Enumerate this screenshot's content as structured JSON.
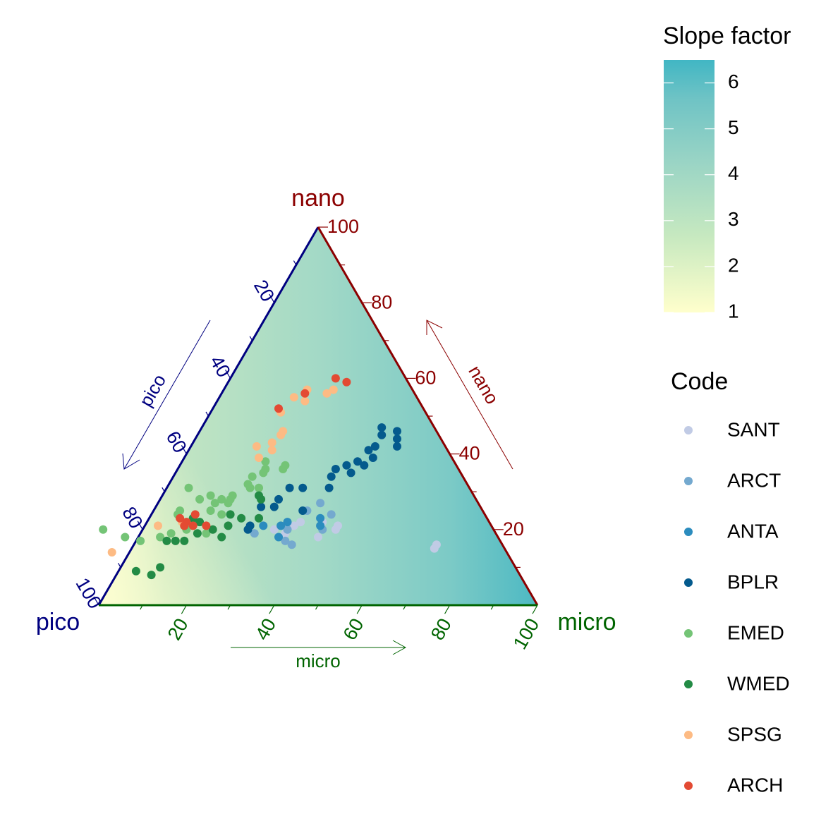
{
  "chart_data": {
    "type": "scatter",
    "subtype": "ternary",
    "axes": {
      "pico": {
        "label": "pico",
        "arrow_label": "pico",
        "color": "#000080",
        "ticks": [
          "20",
          "40",
          "60",
          "80",
          "100"
        ]
      },
      "nano": {
        "label": "nano",
        "arrow_label": "nano",
        "color": "#8B0000",
        "ticks": [
          "20",
          "40",
          "60",
          "80",
          "100"
        ]
      },
      "micro": {
        "label": "micro",
        "arrow_label": "micro",
        "color": "#006400",
        "ticks": [
          "20",
          "40",
          "60",
          "80",
          "100"
        ]
      }
    },
    "fill_legend": {
      "title": "Slope factor",
      "labels": [
        "1",
        "2",
        "3",
        "4",
        "5",
        "6"
      ],
      "min": 1,
      "max": 6.5,
      "colors": [
        "#ffffcc",
        "#c2e6c5",
        "#99d4c5",
        "#6ec3c5",
        "#41b6c4"
      ]
    },
    "legend": {
      "title": "Code",
      "position": "right",
      "entries": [
        {
          "name": "SANT",
          "color": "#c1cbe5"
        },
        {
          "name": "ARCT",
          "color": "#74a9cf"
        },
        {
          "name": "ANTA",
          "color": "#2b8cbe"
        },
        {
          "name": "BPLR",
          "color": "#045a8d"
        },
        {
          "name": "EMED",
          "color": "#74c476"
        },
        {
          "name": "WMED",
          "color": "#238b45"
        },
        {
          "name": "SPSG",
          "color": "#fdbb84"
        },
        {
          "name": "ARCH",
          "color": "#e34a33"
        }
      ]
    },
    "series": [
      {
        "name": "SANT",
        "points": [
          [
            48,
            19,
            33
          ],
          [
            50,
            20,
            30
          ],
          [
            43,
            22,
            35
          ],
          [
            45,
            21,
            34
          ],
          [
            36,
            20,
            44
          ],
          [
            38,
            22,
            40
          ],
          [
            35,
            21,
            44
          ],
          [
            15,
            16,
            69
          ],
          [
            16,
            15,
            69
          ],
          [
            41,
            18,
            41
          ]
        ]
      },
      {
        "name": "ARCT",
        "points": [
          [
            49,
            17,
            34
          ],
          [
            36,
            27,
            37
          ],
          [
            40,
            25,
            35
          ],
          [
            35,
            24,
            41
          ],
          [
            48,
            16,
            36
          ],
          [
            39,
            20,
            41
          ],
          [
            47,
            20,
            33
          ],
          [
            55,
            19,
            26
          ]
        ]
      },
      {
        "name": "ANTA",
        "points": [
          [
            50,
            18,
            32
          ],
          [
            48,
            21,
            31
          ],
          [
            46,
            22,
            32
          ],
          [
            39,
            21,
            40
          ],
          [
            38,
            23,
            39
          ],
          [
            52,
            21,
            27
          ]
        ]
      },
      {
        "name": "BPLR",
        "points": [
          [
            56,
            20,
            24
          ],
          [
            55,
            21,
            24
          ],
          [
            47,
            26,
            27
          ],
          [
            45,
            28,
            27
          ],
          [
            41,
            25,
            34
          ],
          [
            41,
            31,
            28
          ],
          [
            38,
            31,
            31
          ],
          [
            32,
            31,
            37
          ],
          [
            30,
            34,
            36
          ],
          [
            28,
            36,
            36
          ],
          [
            25,
            35,
            40
          ],
          [
            25,
            37,
            38
          ],
          [
            22,
            38,
            40
          ],
          [
            21,
            37,
            42
          ],
          [
            18,
            39,
            43
          ],
          [
            18,
            41,
            41
          ],
          [
            16,
            42,
            42
          ],
          [
            11,
            42,
            47
          ],
          [
            10,
            44,
            46
          ],
          [
            9,
            46,
            45
          ],
          [
            12,
            47,
            41
          ],
          [
            13,
            45,
            42
          ],
          [
            50,
            26,
            24
          ]
        ]
      },
      {
        "name": "EMED",
        "points": [
          [
            89,
            20,
            -9
          ],
          [
            85,
            18,
            -3
          ],
          [
            82,
            17,
            1
          ],
          [
            70,
            20,
            10
          ],
          [
            69,
            25,
            6
          ],
          [
            66,
            19,
            15
          ],
          [
            60,
            24,
            16
          ],
          [
            60,
            27,
            13
          ],
          [
            58,
            28,
            14
          ],
          [
            56,
            28,
            16
          ],
          [
            55,
            29,
            16
          ],
          [
            50,
            31,
            19
          ],
          [
            48,
            31,
            21
          ],
          [
            44,
            36,
            20
          ],
          [
            40,
            36,
            24
          ],
          [
            70,
            24,
            6
          ],
          [
            74,
            19,
            7
          ],
          [
            77,
            18,
            5
          ],
          [
            64,
            31,
            5
          ],
          [
            63,
            28,
            9
          ],
          [
            62,
            25,
            13
          ],
          [
            60,
            29,
            11
          ],
          [
            57,
            27,
            16
          ],
          [
            50,
            32,
            18
          ],
          [
            48,
            34,
            18
          ],
          [
            45,
            35,
            20
          ],
          [
            43,
            38,
            19
          ],
          [
            39,
            37,
            24
          ]
        ]
      },
      {
        "name": "WMED",
        "points": [
          [
            87,
            9,
            4
          ],
          [
            84,
            8,
            8
          ],
          [
            81,
            10,
            9
          ],
          [
            76,
            17,
            7
          ],
          [
            72,
            17,
            11
          ],
          [
            70,
            21,
            9
          ],
          [
            68,
            19,
            13
          ],
          [
            67,
            23,
            10
          ],
          [
            64,
            20,
            16
          ],
          [
            63,
            18,
            19
          ],
          [
            60,
            21,
            19
          ],
          [
            58,
            24,
            18
          ],
          [
            56,
            23,
            21
          ],
          [
            52,
            23,
            25
          ],
          [
            49,
            28,
            23
          ],
          [
            49,
            29,
            22
          ],
          [
            74,
            17,
            9
          ],
          [
            66,
            22,
            12
          ]
        ]
      },
      {
        "name": "SPSG",
        "points": [
          [
            90,
            14,
            -4
          ],
          [
            76,
            21,
            3
          ],
          [
            70,
            22,
            8
          ],
          [
            44,
            39,
            17
          ],
          [
            43,
            42,
            15
          ],
          [
            40,
            41,
            19
          ],
          [
            39,
            43,
            18
          ],
          [
            36,
            45,
            19
          ],
          [
            35,
            46,
            19
          ],
          [
            18,
            57,
            25
          ],
          [
            20,
            56,
            24
          ],
          [
            24,
            57,
            19
          ],
          [
            25,
            56,
            19
          ],
          [
            26,
            54,
            20
          ],
          [
            28,
            55,
            17
          ],
          [
            33,
            51,
            16
          ]
        ]
      },
      {
        "name": "ARCH",
        "points": [
          [
            70,
            21,
            9
          ],
          [
            66,
            24,
            10
          ],
          [
            70,
            23,
            7
          ],
          [
            69,
            22,
            9
          ],
          [
            68,
            21,
            11
          ],
          [
            65,
            21,
            14
          ],
          [
            33,
            52,
            15
          ],
          [
            25,
            56,
            19
          ],
          [
            16,
            60,
            24
          ],
          [
            14,
            59,
            27
          ]
        ]
      }
    ]
  }
}
